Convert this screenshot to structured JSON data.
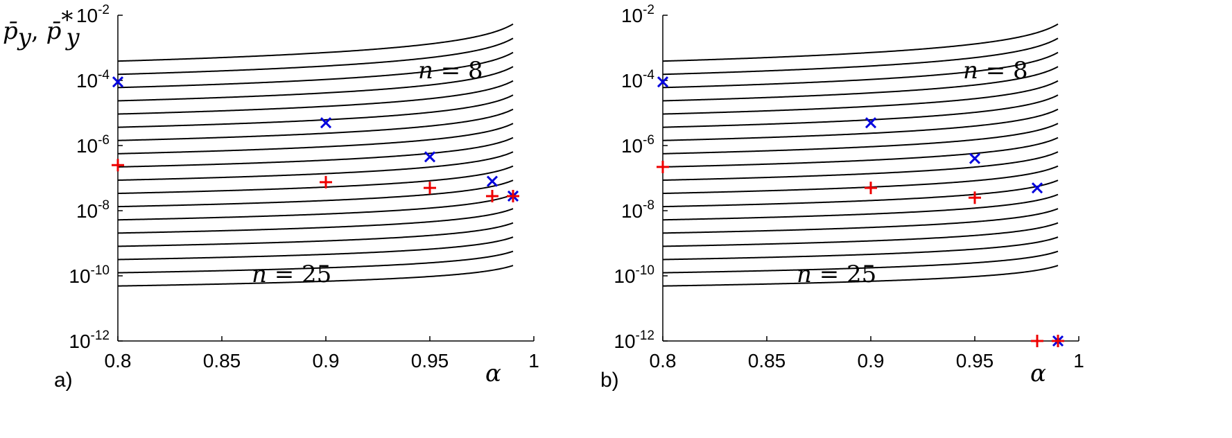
{
  "figure": {
    "y_axis_label": {
      "main": "p̄",
      "sub": "y",
      "sep": ", ",
      "main2": "p̄",
      "sub2": "y",
      "sup2": "*"
    },
    "x_axis_label": "α",
    "curve_label_top": "n = 8",
    "curve_label_bottom": "n = 25"
  },
  "chart_data": [
    {
      "type": "line",
      "panel_label": "a)",
      "xlabel": "α",
      "ylabel": "p̄y, p̄y*",
      "xlim": [
        0.8,
        1.0
      ],
      "ylim": [
        1e-12,
        0.01
      ],
      "y_scale": "log",
      "x_ticks": [
        "0.8",
        "0.85",
        "0.9",
        "0.95",
        "1"
      ],
      "x_tick_values": [
        0.8,
        0.85,
        0.9,
        0.95,
        1.0
      ],
      "y_ticks": [
        {
          "base": "10",
          "exp": "-2"
        },
        {
          "base": "10",
          "exp": "-4"
        },
        {
          "base": "10",
          "exp": "-6"
        },
        {
          "base": "10",
          "exp": "-8"
        },
        {
          "base": "10",
          "exp": "-10"
        },
        {
          "base": "10",
          "exp": "-12"
        }
      ],
      "y_tick_values": [
        0.01,
        0.0001,
        1e-06,
        1e-08,
        1e-10,
        1e-12
      ],
      "annotations": [
        "n = 8",
        "n = 25"
      ],
      "curves": {
        "n_from": 8,
        "n_to": 25,
        "family": "one curve per n, n = 8 … 25",
        "x_end": 0.99
      },
      "markers": [
        {
          "symbol": "x",
          "color": "#0000dd",
          "points": [
            [
              0.8,
              9e-05
            ],
            [
              0.9,
              5e-06
            ],
            [
              0.95,
              4.5e-07
            ],
            [
              0.98,
              8e-08
            ],
            [
              0.99,
              2.8e-08
            ]
          ]
        },
        {
          "symbol": "+",
          "color": "#ee0000",
          "points": [
            [
              0.8,
              2.5e-07
            ],
            [
              0.9,
              7.5e-08
            ],
            [
              0.95,
              5e-08
            ],
            [
              0.98,
              2.8e-08
            ],
            [
              0.99,
              2.8e-08
            ]
          ]
        }
      ]
    },
    {
      "type": "line",
      "panel_label": "b)",
      "xlabel": "α",
      "ylabel": "",
      "xlim": [
        0.8,
        1.0
      ],
      "ylim": [
        1e-12,
        0.01
      ],
      "y_scale": "log",
      "x_ticks": [
        "0.8",
        "0.85",
        "0.9",
        "0.95",
        "1"
      ],
      "x_tick_values": [
        0.8,
        0.85,
        0.9,
        0.95,
        1.0
      ],
      "y_ticks": [
        {
          "base": "10",
          "exp": "-2"
        },
        {
          "base": "10",
          "exp": "-4"
        },
        {
          "base": "10",
          "exp": "-6"
        },
        {
          "base": "10",
          "exp": "-8"
        },
        {
          "base": "10",
          "exp": "-10"
        },
        {
          "base": "10",
          "exp": "-12"
        }
      ],
      "y_tick_values": [
        0.01,
        0.0001,
        1e-06,
        1e-08,
        1e-10,
        1e-12
      ],
      "annotations": [
        "n = 8",
        "n = 25"
      ],
      "curves": {
        "n_from": 8,
        "n_to": 25,
        "family": "one curve per n, n = 8 … 25",
        "x_end": 0.99
      },
      "markers": [
        {
          "symbol": "x",
          "color": "#0000dd",
          "points": [
            [
              0.8,
              9e-05
            ],
            [
              0.9,
              5e-06
            ],
            [
              0.95,
              4e-07
            ],
            [
              0.98,
              5e-08
            ],
            [
              0.99,
              1e-12
            ]
          ]
        },
        {
          "symbol": "+",
          "color": "#ee0000",
          "points": [
            [
              0.8,
              2.2e-07
            ],
            [
              0.9,
              5e-08
            ],
            [
              0.95,
              2.5e-08
            ],
            [
              0.98,
              1e-12
            ],
            [
              0.99,
              1e-12
            ]
          ]
        }
      ]
    }
  ]
}
